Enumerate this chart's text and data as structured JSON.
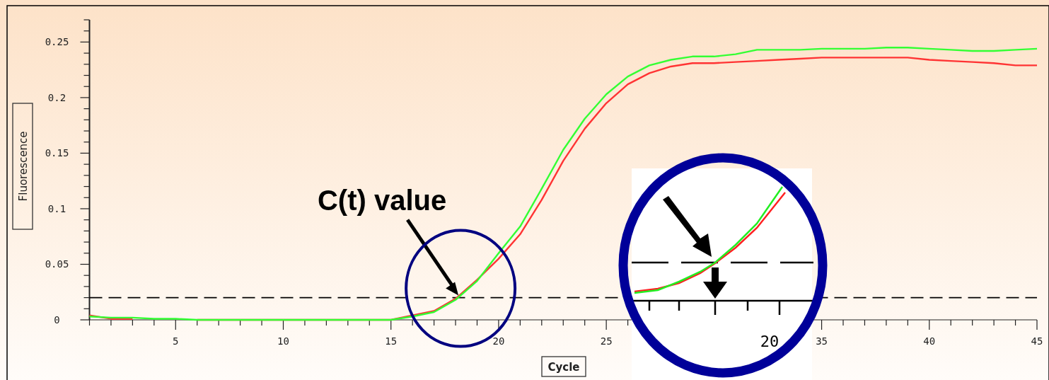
{
  "chart_data": {
    "type": "line",
    "xlabel": "Cycle",
    "ylabel": "Fluorescence",
    "x": [
      1,
      2,
      3,
      4,
      5,
      6,
      7,
      8,
      9,
      10,
      11,
      12,
      13,
      14,
      15,
      16,
      17,
      18,
      19,
      20,
      21,
      22,
      23,
      24,
      25,
      26,
      27,
      28,
      29,
      30,
      31,
      32,
      33,
      34,
      35,
      36,
      37,
      38,
      39,
      40,
      41,
      42,
      43,
      44,
      45
    ],
    "series": [
      {
        "color": "#ff3333",
        "values": [
          0.004,
          0.001,
          0.001,
          null,
          null,
          0,
          0,
          0,
          0,
          0,
          0,
          0,
          0,
          0,
          0,
          0.004,
          0.008,
          0.019,
          0.036,
          0.055,
          0.077,
          0.108,
          0.143,
          0.172,
          0.195,
          0.212,
          0.222,
          0.228,
          0.231,
          0.231,
          0.232,
          0.233,
          0.234,
          0.235,
          0.236,
          0.236,
          0.236,
          0.236,
          0.236,
          0.234,
          0.233,
          0.232,
          0.231,
          0.229,
          0.229
        ]
      },
      {
        "color": "#33ff33",
        "values": [
          0.003,
          0.002,
          0.002,
          0.001,
          0.001,
          0,
          0,
          0,
          0,
          0,
          0,
          0,
          0,
          0,
          0,
          0.003,
          0.007,
          0.018,
          0.035,
          0.06,
          0.084,
          0.118,
          0.153,
          0.181,
          0.203,
          0.219,
          0.229,
          0.234,
          0.237,
          0.237,
          0.239,
          0.243,
          0.243,
          0.243,
          0.244,
          0.244,
          0.244,
          0.245,
          0.245,
          0.244,
          0.243,
          0.242,
          0.242,
          0.243,
          0.244
        ]
      }
    ],
    "xlim": [
      1,
      45
    ],
    "xticks": [
      {
        "value": 1,
        "label": null
      },
      {
        "value": 2,
        "label": null
      },
      {
        "value": 3,
        "label": null
      },
      {
        "value": 4,
        "label": null
      },
      5,
      {
        "value": 6,
        "label": null
      },
      {
        "value": 7,
        "label": null
      },
      {
        "value": 8,
        "label": null
      },
      {
        "value": 9,
        "label": null
      },
      10,
      {
        "value": 11,
        "label": null
      },
      {
        "value": 12,
        "label": null
      },
      {
        "value": 13,
        "label": null
      },
      {
        "value": 14,
        "label": null
      },
      15,
      {
        "value": 16,
        "label": null
      },
      {
        "value": 17,
        "label": null
      },
      {
        "value": 18,
        "label": null
      },
      {
        "value": 19,
        "label": null
      },
      20,
      {
        "value": 21,
        "label": null
      },
      {
        "value": 22,
        "label": null
      },
      {
        "value": 23,
        "label": null
      },
      {
        "value": 24,
        "label": null
      },
      25,
      {
        "value": 26,
        "label": null
      },
      {
        "value": 27,
        "label": null
      },
      {
        "value": 28,
        "label": null
      },
      {
        "value": 29,
        "label": null
      },
      {
        "value": 30,
        "label": null
      },
      {
        "value": 31,
        "label": null
      },
      {
        "value": 32,
        "label": null
      },
      {
        "value": 33,
        "label": null
      },
      {
        "value": 34,
        "label": null
      },
      35,
      {
        "value": 36,
        "label": null
      },
      {
        "value": 37,
        "label": null
      },
      {
        "value": 38,
        "label": null
      },
      {
        "value": 39,
        "label": null
      },
      40,
      {
        "value": 41,
        "label": null
      },
      {
        "value": 42,
        "label": null
      },
      {
        "value": 43,
        "label": null
      },
      {
        "value": 44,
        "label": null
      },
      45
    ],
    "ylim": [
      0,
      0.27
    ],
    "yticks": [
      0,
      {
        "value": 0.01,
        "label": null
      },
      {
        "value": 0.02,
        "label": null
      },
      {
        "value": 0.03,
        "label": null
      },
      {
        "value": 0.04,
        "label": null
      },
      0.05,
      {
        "value": 0.06,
        "label": null
      },
      {
        "value": 0.07,
        "label": null
      },
      {
        "value": 0.08,
        "label": null
      },
      {
        "value": 0.09,
        "label": null
      },
      0.1,
      {
        "value": 0.11,
        "label": null
      },
      {
        "value": 0.12,
        "label": null
      },
      {
        "value": 0.13,
        "label": null
      },
      {
        "value": 0.14,
        "label": null
      },
      0.15,
      {
        "value": 0.16,
        "label": null
      },
      {
        "value": 0.17,
        "label": null
      },
      {
        "value": 0.18,
        "label": null
      },
      {
        "value": 0.19,
        "label": null
      },
      0.2,
      {
        "value": 0.21,
        "label": null
      },
      {
        "value": 0.22,
        "label": null
      },
      {
        "value": 0.23,
        "label": null
      },
      {
        "value": 0.24,
        "label": null
      },
      0.25,
      {
        "value": 0.26,
        "label": null
      },
      {
        "value": 0.27,
        "label": null
      }
    ],
    "ref_lines": [
      {
        "axis": "y",
        "value": 0.02,
        "color": "#000000",
        "line_style": "dashed"
      }
    ],
    "annotations": [
      {
        "text": "C(t) value",
        "x": 18.2,
        "y": 0.02
      },
      "20"
    ]
  }
}
